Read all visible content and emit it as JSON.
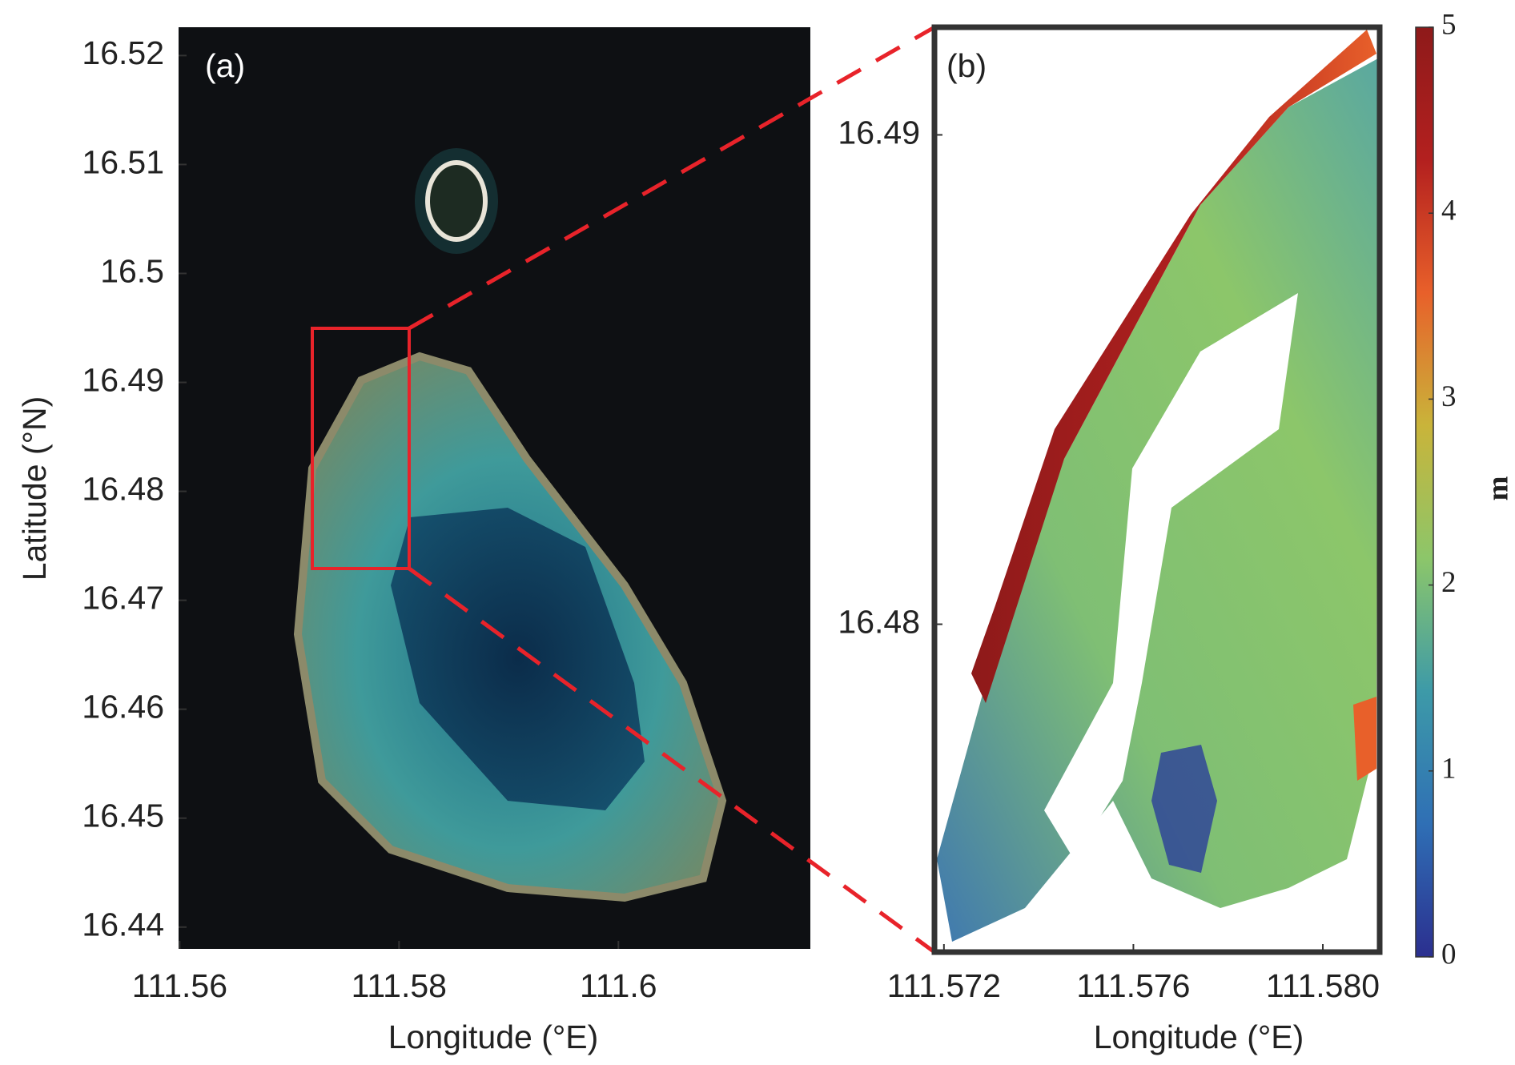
{
  "chart_data": [
    {
      "type": "image",
      "panel_label": "(a)",
      "xlabel": "Longitude (°E)",
      "ylabel": "Latitude (°N)",
      "xlim": [
        111.5599,
        111.6175
      ],
      "ylim": [
        16.438,
        16.5226
      ],
      "xticks": [
        111.56,
        111.58,
        111.6
      ],
      "yticks": [
        16.52,
        16.51,
        16.5,
        16.49,
        16.48,
        16.47,
        16.46,
        16.45,
        16.44
      ]
    },
    {
      "type": "heatmap",
      "panel_label": "(b)",
      "xlabel": "Longitude (°E)",
      "xlim": [
        111.5718,
        111.5812
      ],
      "ylim": [
        16.4733,
        16.4922
      ],
      "xticks": [
        111.572,
        111.576,
        {
          "value": 111.58,
          "label": "111.580"
        }
      ],
      "yticks": [
        16.49,
        16.48
      ],
      "colorbar": {
        "label": "m",
        "lim": [
          0,
          5
        ],
        "ticks": [
          0,
          1,
          2,
          3,
          4,
          5
        ],
        "colors": [
          "#2b2f8f",
          "#2f6fb5",
          "#3d9aa8",
          "#8cc66a",
          "#c9b43a",
          "#e8602a",
          "#b3201f",
          "#8e1a1a"
        ]
      }
    }
  ]
}
